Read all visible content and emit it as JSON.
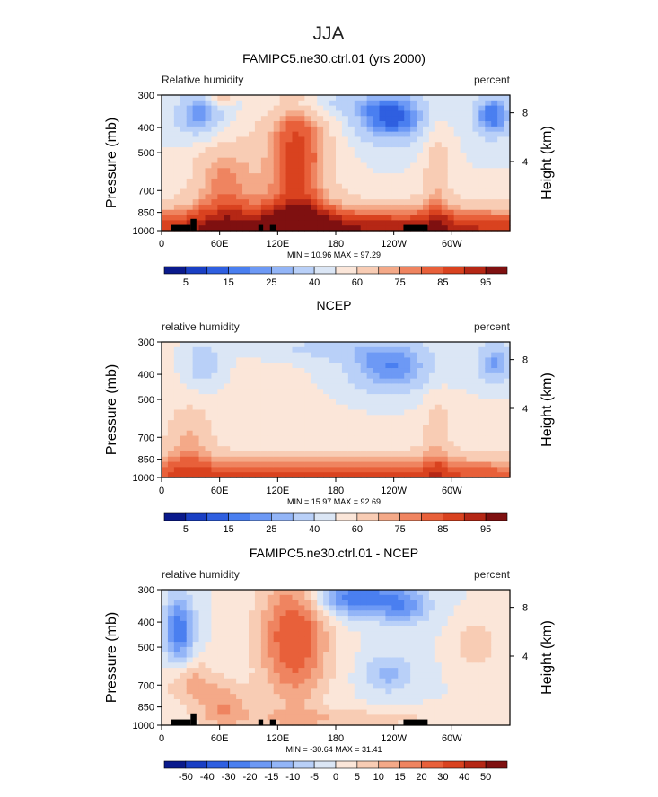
{
  "figure_title": "JJA",
  "chart_data": [
    {
      "type": "heatmap",
      "title": "FAMIPC5.ne30.ctrl.01 (yrs 2000)",
      "left_label": "Relative humidity",
      "right_label": "percent",
      "ylabel": "Pressure (mb)",
      "y2label": "Height (km)",
      "y_ticks": [
        "300",
        "400",
        "500",
        "700",
        "850",
        "1000"
      ],
      "y_tick_values": [
        300,
        400,
        500,
        700,
        850,
        1000
      ],
      "y2_ticks": [
        "8",
        "4"
      ],
      "y2_tick_values": [
        8,
        4
      ],
      "x_ticks": [
        "0",
        "60E",
        "120E",
        "180",
        "120W",
        "60W"
      ],
      "x_tick_values": [
        0,
        60,
        120,
        180,
        240,
        300
      ],
      "xlim": [
        0,
        360
      ],
      "ylim": [
        1000,
        300
      ],
      "stats": "MIN =   10.96   MAX =   97.29",
      "min": 10.96,
      "max": 97.29,
      "colorbar_labels": [
        "5",
        "15",
        "25",
        "40",
        "60",
        "75",
        "85",
        "95"
      ],
      "colorbar_levels": [
        5,
        10,
        15,
        20,
        25,
        30,
        40,
        50,
        60,
        70,
        75,
        80,
        85,
        90,
        95
      ],
      "colorbar_colors": [
        "#0a1a8c",
        "#1a3fc4",
        "#2f5fe0",
        "#4a7ff0",
        "#6d99f5",
        "#93b5f7",
        "#b9d0f8",
        "#dbe6f5",
        "#fbe6d9",
        "#f8ccb4",
        "#f4a988",
        "#ef8460",
        "#e8603a",
        "#d9421f",
        "#b52715",
        "#7f1010"
      ],
      "topography": true
    },
    {
      "type": "heatmap",
      "title": "NCEP",
      "left_label": "relative humidity",
      "right_label": "percent",
      "ylabel": "Pressure (mb)",
      "y2label": "Height (km)",
      "y_ticks": [
        "300",
        "400",
        "500",
        "700",
        "850",
        "1000"
      ],
      "y_tick_values": [
        300,
        400,
        500,
        700,
        850,
        1000
      ],
      "y2_ticks": [
        "8",
        "4"
      ],
      "y2_tick_values": [
        8,
        4
      ],
      "x_ticks": [
        "0",
        "60E",
        "120E",
        "180",
        "120W",
        "60W"
      ],
      "x_tick_values": [
        0,
        60,
        120,
        180,
        240,
        300
      ],
      "xlim": [
        0,
        360
      ],
      "ylim": [
        1000,
        300
      ],
      "stats": "MIN =   15.97   MAX =   92.69",
      "min": 15.97,
      "max": 92.69,
      "colorbar_labels": [
        "5",
        "15",
        "25",
        "40",
        "60",
        "75",
        "85",
        "95"
      ],
      "colorbar_levels": [
        5,
        10,
        15,
        20,
        25,
        30,
        40,
        50,
        60,
        70,
        75,
        80,
        85,
        90,
        95
      ],
      "colorbar_colors": [
        "#0a1a8c",
        "#1a3fc4",
        "#2f5fe0",
        "#4a7ff0",
        "#6d99f5",
        "#93b5f7",
        "#b9d0f8",
        "#dbe6f5",
        "#fbe6d9",
        "#f8ccb4",
        "#f4a988",
        "#ef8460",
        "#e8603a",
        "#d9421f",
        "#b52715",
        "#7f1010"
      ],
      "topography": false
    },
    {
      "type": "heatmap",
      "title": "FAMIPC5.ne30.ctrl.01 - NCEP",
      "left_label": "relative humidity",
      "right_label": "percent",
      "ylabel": "Pressure (mb)",
      "y2label": "Height (km)",
      "y_ticks": [
        "300",
        "400",
        "500",
        "700",
        "850",
        "1000"
      ],
      "y_tick_values": [
        300,
        400,
        500,
        700,
        850,
        1000
      ],
      "y2_ticks": [
        "8",
        "4"
      ],
      "y2_tick_values": [
        8,
        4
      ],
      "x_ticks": [
        "0",
        "60E",
        "120E",
        "180",
        "120W",
        "60W"
      ],
      "x_tick_values": [
        0,
        60,
        120,
        180,
        240,
        300
      ],
      "xlim": [
        0,
        360
      ],
      "ylim": [
        1000,
        300
      ],
      "stats": "MIN = -30.64   MAX =   31.41",
      "min": -30.64,
      "max": 31.41,
      "colorbar_labels": [
        "-50",
        "-40",
        "-30",
        "-20",
        "-15",
        "-10",
        "-5",
        "0",
        "5",
        "10",
        "15",
        "20",
        "30",
        "40",
        "50"
      ],
      "colorbar_levels": [
        -50,
        -40,
        -30,
        -20,
        -15,
        -10,
        -5,
        0,
        5,
        10,
        15,
        20,
        30,
        40,
        50
      ],
      "colorbar_colors": [
        "#0a1a8c",
        "#1a3fc4",
        "#2f5fe0",
        "#4a7ff0",
        "#6d99f5",
        "#93b5f7",
        "#b9d0f8",
        "#dbe6f5",
        "#fbe6d9",
        "#f8ccb4",
        "#f4a988",
        "#ef8460",
        "#e8603a",
        "#d9421f",
        "#b52715",
        "#7f1010"
      ],
      "topography": true
    }
  ]
}
